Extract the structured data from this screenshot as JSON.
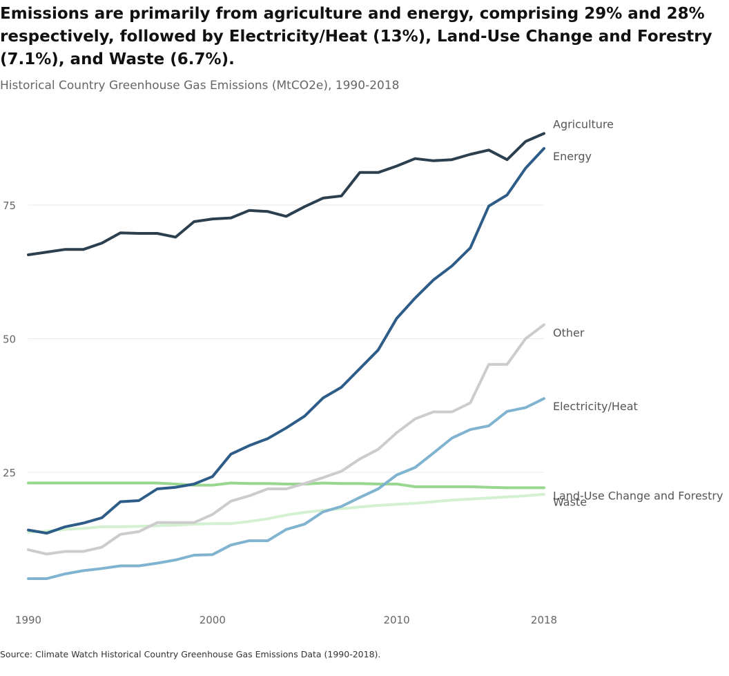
{
  "header": {
    "title": "Emissions are primarily from agriculture and energy, comprising 29% and 28% respectively, followed by Electricity/Heat (13%), Land-Use Change and Forestry (7.1%), and Waste (6.7%).",
    "subtitle": "Historical Country Greenhouse Gas Emissions (MtCO2e), 1990-2018"
  },
  "footer": {
    "source": "Source: Climate Watch Historical Country Greenhouse Gas Emissions Data (1990-2018)."
  },
  "chart_data": {
    "type": "line",
    "title": "Emissions are primarily from agriculture and energy, comprising 29% and 28% respectively, followed by Electricity/Heat (13%), Land-Use Change and Forestry (7.1%), and Waste (6.7%).",
    "subtitle": "Historical Country Greenhouse Gas Emissions (MtCO2e), 1990-2018",
    "xlabel": "",
    "ylabel": "",
    "x": [
      1990,
      1991,
      1992,
      1993,
      1994,
      1995,
      1996,
      1997,
      1998,
      1999,
      2000,
      2001,
      2002,
      2003,
      2004,
      2005,
      2006,
      2007,
      2008,
      2009,
      2010,
      2011,
      2012,
      2013,
      2014,
      2015,
      2016,
      2017,
      2018
    ],
    "xlim": [
      1990,
      2018
    ],
    "ylim": [
      4,
      91
    ],
    "x_ticks": [
      1990,
      2000,
      2010,
      2018
    ],
    "x_tick_labels": [
      "1990",
      "2000",
      "2010",
      "2018"
    ],
    "y_ticks": [
      25,
      50,
      75
    ],
    "y_tick_labels": [
      "25",
      "50",
      "75"
    ],
    "grid": "horizontal",
    "legend": "direct labels at line ends (right)",
    "series": [
      {
        "name": "Agriculture",
        "color": "#2b3f4e",
        "values": [
          65.7,
          66.2,
          66.7,
          66.7,
          67.9,
          69.8,
          69.7,
          69.7,
          69.0,
          71.9,
          72.4,
          72.6,
          74.0,
          73.8,
          72.9,
          74.7,
          76.3,
          76.7,
          81.1,
          81.1,
          82.3,
          83.7,
          83.3,
          83.5,
          84.5,
          85.3,
          83.5,
          86.9,
          88.4
        ]
      },
      {
        "name": "Energy",
        "color": "#2e5c88",
        "values": [
          14.2,
          13.6,
          14.8,
          15.5,
          16.5,
          19.5,
          19.7,
          21.9,
          22.2,
          22.8,
          24.2,
          28.4,
          30.0,
          31.3,
          33.3,
          35.5,
          38.9,
          40.9,
          44.4,
          47.9,
          53.8,
          57.6,
          61.0,
          63.6,
          67.0,
          74.8,
          76.9,
          81.9,
          85.6
        ]
      },
      {
        "name": "Other",
        "color": "#cccccc",
        "values": [
          10.5,
          9.7,
          10.2,
          10.2,
          11.0,
          13.4,
          13.9,
          15.6,
          15.6,
          15.6,
          17.1,
          19.6,
          20.6,
          21.9,
          21.9,
          22.9,
          24.0,
          25.2,
          27.5,
          29.3,
          32.4,
          35.0,
          36.3,
          36.3,
          38.0,
          45.2,
          45.2,
          50.0,
          52.6
        ]
      },
      {
        "name": "Electricity/Heat",
        "color": "#7fb3d0",
        "values": [
          5.1,
          5.1,
          6.0,
          6.6,
          7.0,
          7.5,
          7.5,
          8.0,
          8.6,
          9.5,
          9.6,
          11.4,
          12.2,
          12.2,
          14.3,
          15.3,
          17.6,
          18.6,
          20.3,
          21.9,
          24.5,
          25.9,
          28.6,
          31.4,
          33.0,
          33.7,
          36.4,
          37.1,
          38.8
        ]
      },
      {
        "name": "Land-Use Change and Forestry",
        "color": "#99d68f",
        "values": [
          23.0,
          23.0,
          23.0,
          23.0,
          23.0,
          23.0,
          23.0,
          23.0,
          22.8,
          22.6,
          22.6,
          23.0,
          22.9,
          22.9,
          22.8,
          22.8,
          23.0,
          22.9,
          22.9,
          22.8,
          22.8,
          22.3,
          22.3,
          22.3,
          22.3,
          22.2,
          22.1,
          22.1,
          22.1
        ]
      },
      {
        "name": "Waste",
        "color": "#d3f0d0",
        "values": [
          13.8,
          14.0,
          14.3,
          14.5,
          14.8,
          14.8,
          14.9,
          15.0,
          15.1,
          15.3,
          15.4,
          15.4,
          15.8,
          16.3,
          17.0,
          17.5,
          17.9,
          18.2,
          18.5,
          18.8,
          19.0,
          19.2,
          19.5,
          19.8,
          20.0,
          20.2,
          20.4,
          20.6,
          20.9
        ]
      }
    ],
    "label_values": {
      "Agriculture": 88.4,
      "Energy": 85.6,
      "Other": 52.6,
      "Electricity/Heat": 38.8,
      "Land-Use Change and Forestry": 22.1,
      "Waste": 20.9
    }
  }
}
